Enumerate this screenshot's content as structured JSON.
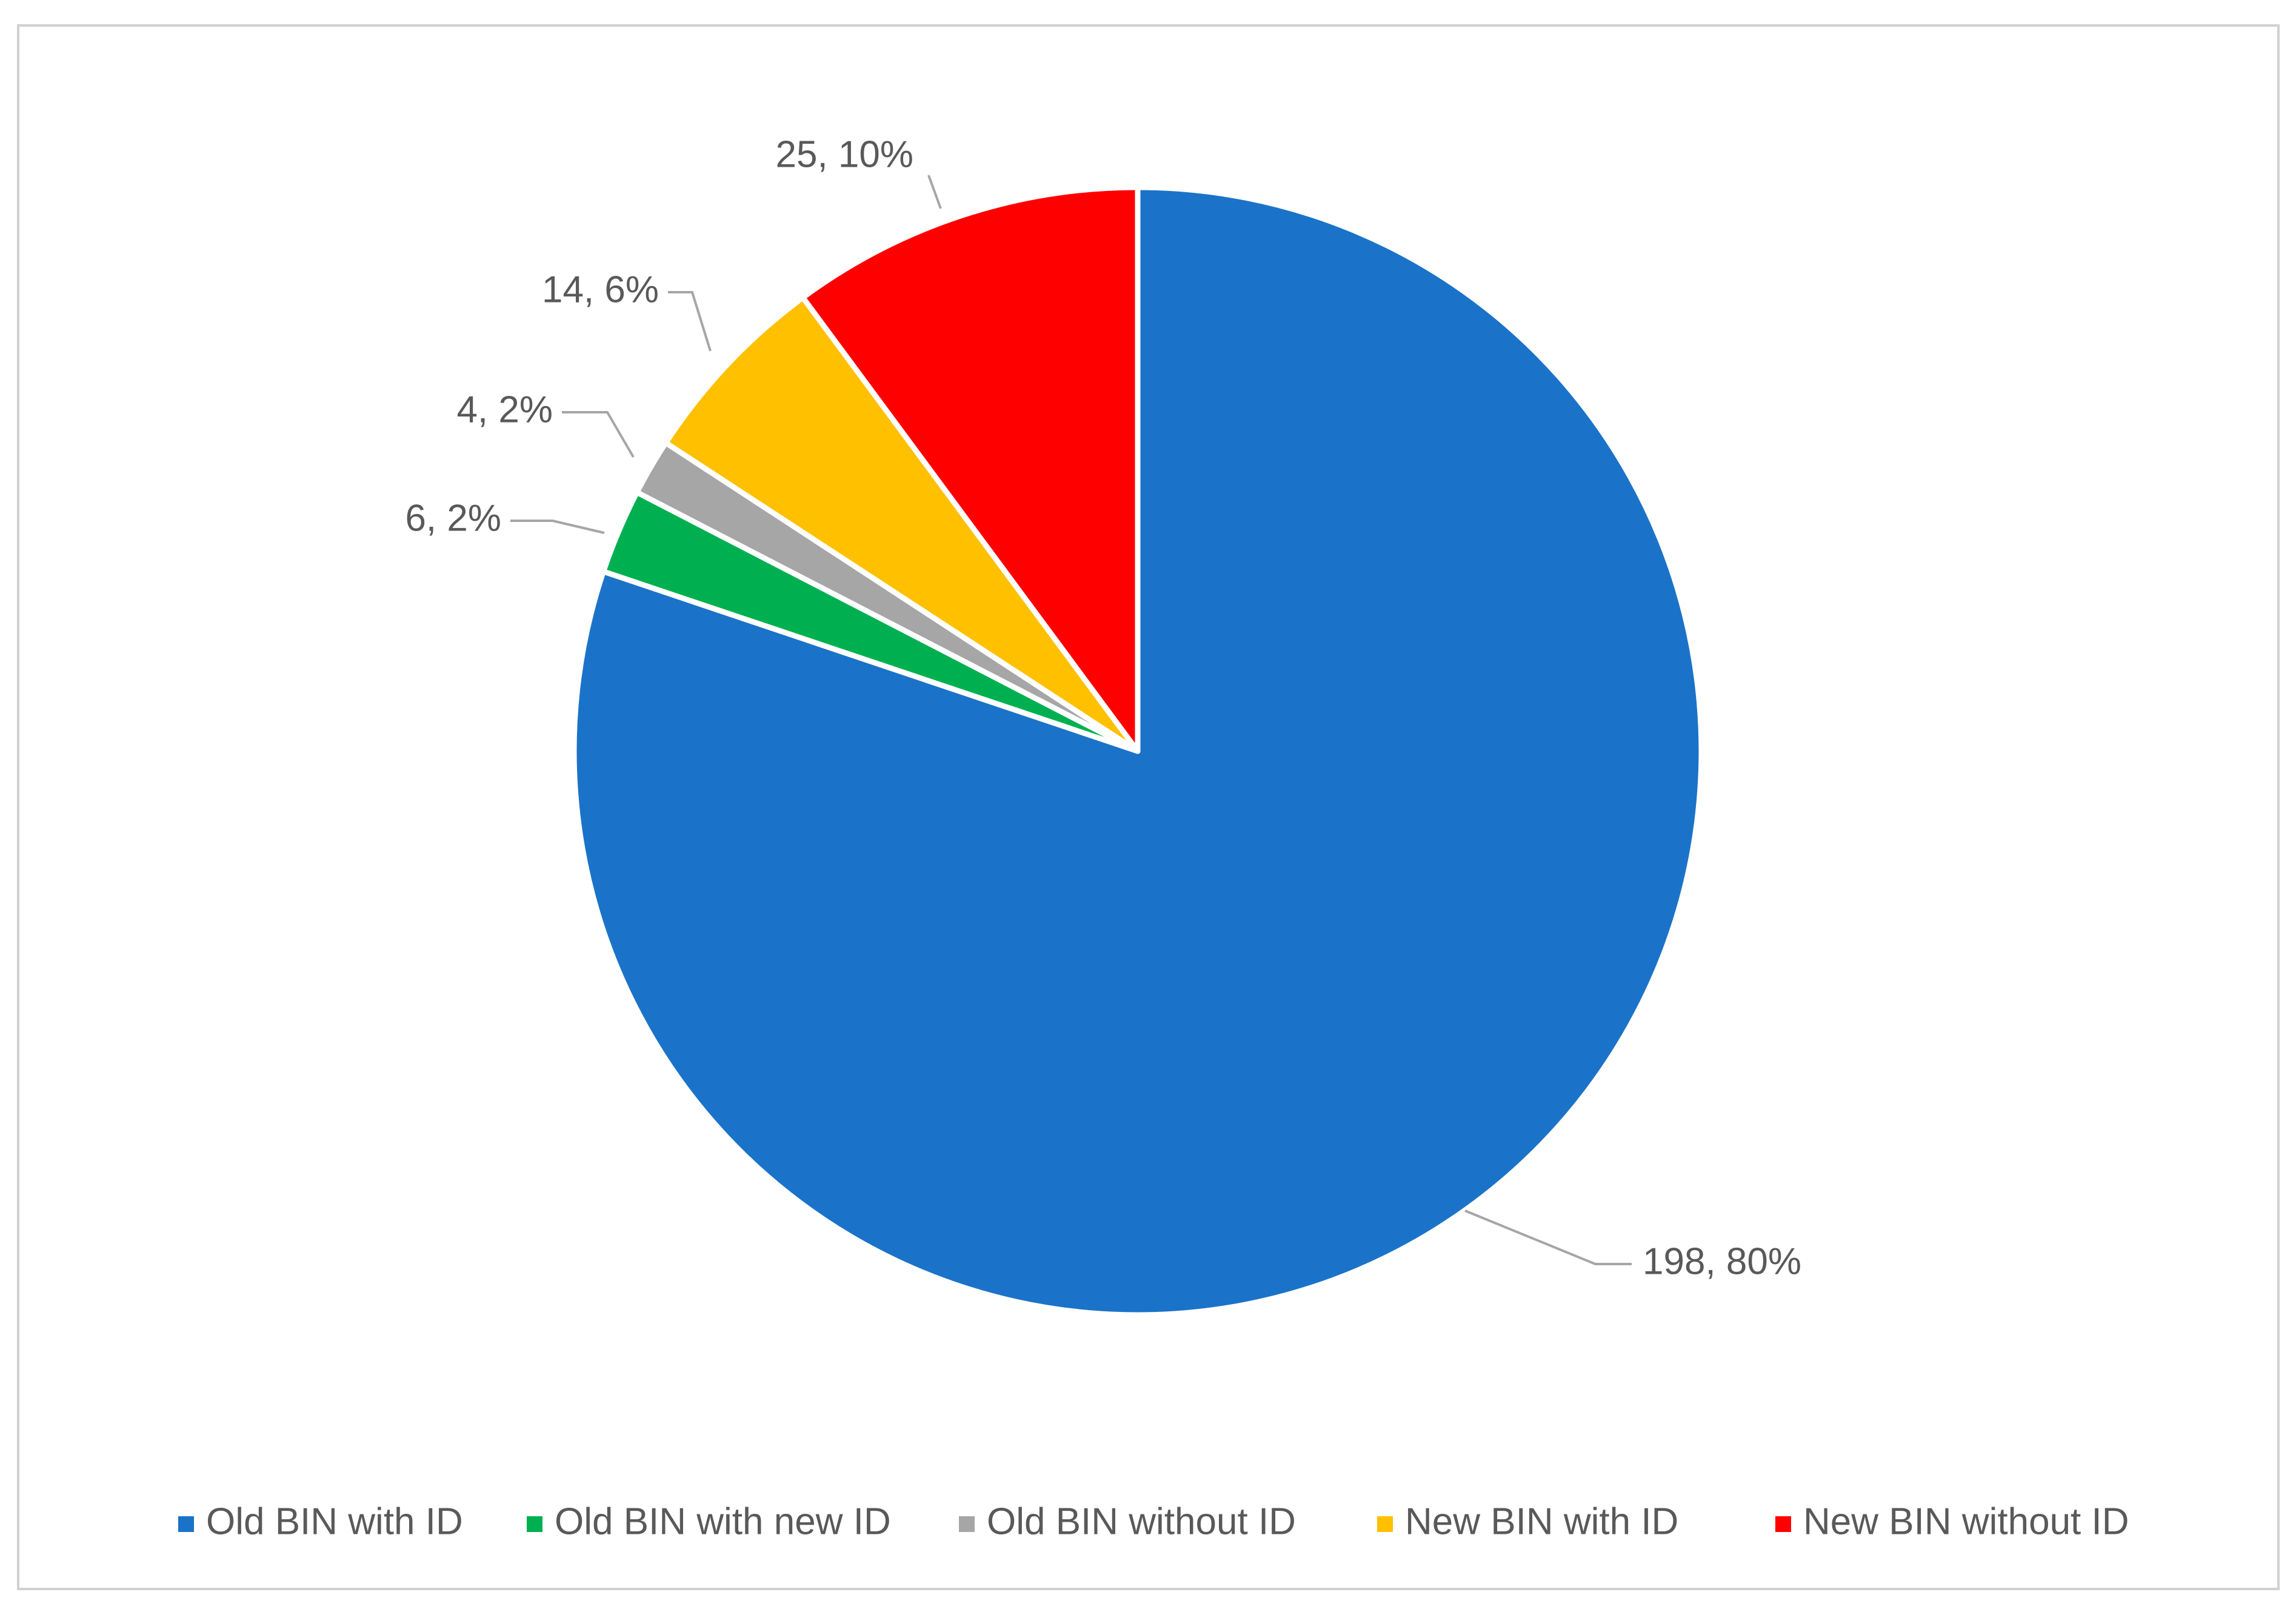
{
  "chart_data": {
    "type": "pie",
    "title": "",
    "start_angle_deg": 0,
    "direction": "clockwise",
    "slices": [
      {
        "name": "Old BIN with ID",
        "value": 198,
        "percent_label": "80%",
        "data_label": "198, 80%",
        "color": "#1a73c8"
      },
      {
        "name": "Old BIN with new ID",
        "value": 6,
        "percent_label": "2%",
        "data_label": "6, 2%",
        "color": "#00b050"
      },
      {
        "name": "Old BIN without ID",
        "value": 4,
        "percent_label": "2%",
        "data_label": "4, 2%",
        "color": "#a6a6a6"
      },
      {
        "name": "New BIN with ID",
        "value": 14,
        "percent_label": "6%",
        "data_label": "14, 6%",
        "color": "#ffc000"
      },
      {
        "name": "New BIN without ID",
        "value": 25,
        "percent_label": "10%",
        "data_label": "25, 10%",
        "color": "#ff0000"
      }
    ],
    "legend": {
      "position": "bottom",
      "entries": [
        "Old BIN with ID",
        "Old BIN with new ID",
        "Old BIN without ID",
        "New BIN with ID",
        "New BIN without ID"
      ]
    },
    "slice_border_color": "#ffffff",
    "leader_line_color": "#a6a6a6",
    "label_color": "#595959"
  }
}
